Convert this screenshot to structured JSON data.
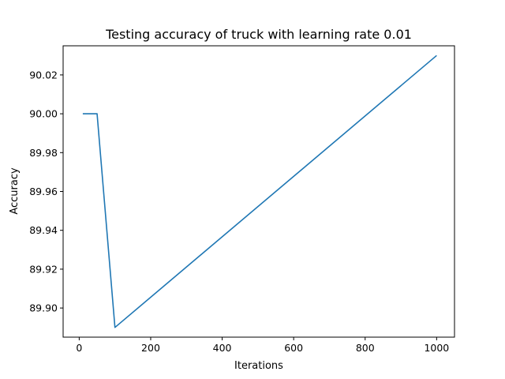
{
  "chart_data": {
    "type": "line",
    "title": "Testing accuracy of truck with learning rate 0.01",
    "xlabel": "Iterations",
    "ylabel": "Accuracy",
    "xlim": [
      -45,
      1050
    ],
    "ylim": [
      89.885,
      90.035
    ],
    "x_ticks": [
      0,
      200,
      400,
      600,
      800,
      1000
    ],
    "y_ticks": [
      89.9,
      89.92,
      89.94,
      89.96,
      89.98,
      90.0,
      90.02
    ],
    "y_tick_labels": [
      "89.90",
      "89.92",
      "89.94",
      "89.96",
      "89.98",
      "90.00",
      "90.02"
    ],
    "grid": false,
    "series": [
      {
        "color": "#1f77b4",
        "x": [
          10,
          50,
          100,
          1000
        ],
        "y": [
          90.0,
          90.0,
          89.89,
          90.03
        ]
      }
    ]
  }
}
